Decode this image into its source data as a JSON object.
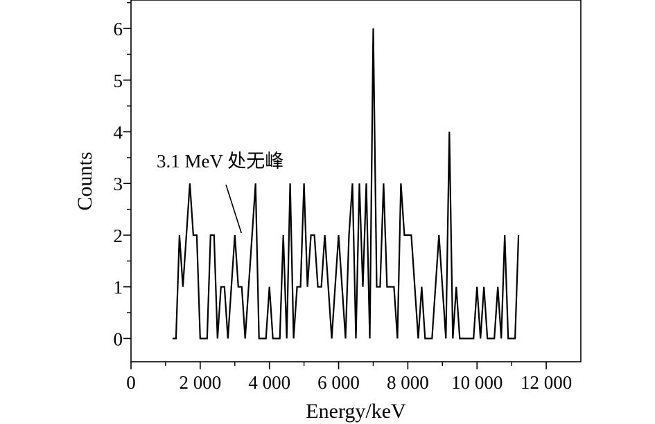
{
  "chart_data": {
    "type": "line",
    "title": "",
    "xlabel": "Energy/keV",
    "ylabel": "Counts",
    "xlim": [
      0,
      13000
    ],
    "ylim": [
      -0.45,
      6.55
    ],
    "grid": false,
    "x_ticks": [
      0,
      2000,
      4000,
      6000,
      8000,
      10000,
      12000
    ],
    "x_tick_labels": [
      "0",
      "2 000",
      "4 000",
      "6 000",
      "8 000",
      "10 000",
      "12 000"
    ],
    "y_ticks": [
      0,
      1,
      2,
      3,
      4,
      5,
      6
    ],
    "y_tick_labels": [
      "0",
      "1",
      "2",
      "3",
      "4",
      "5",
      "6"
    ],
    "series": [
      {
        "color": "#000000",
        "x": [
          1200,
          1300,
          1400,
          1500,
          1600,
          1700,
          1800,
          1900,
          2000,
          2100,
          2200,
          2300,
          2400,
          2500,
          2600,
          2700,
          2800,
          2900,
          3000,
          3100,
          3200,
          3300,
          3400,
          3500,
          3600,
          3700,
          3800,
          3900,
          4000,
          4100,
          4200,
          4300,
          4400,
          4500,
          4600,
          4700,
          4800,
          4900,
          5000,
          5100,
          5200,
          5300,
          5400,
          5500,
          5600,
          5700,
          5800,
          5900,
          6000,
          6100,
          6200,
          6300,
          6400,
          6500,
          6600,
          6700,
          6800,
          6900,
          7000,
          7100,
          7200,
          7300,
          7400,
          7500,
          7600,
          7700,
          7800,
          7900,
          8000,
          8100,
          8200,
          8300,
          8400,
          8500,
          8600,
          8700,
          8800,
          8900,
          9000,
          9100,
          9200,
          9300,
          9400,
          9500,
          9600,
          9700,
          9800,
          9900,
          10000,
          10100,
          10200,
          10300,
          10400,
          10500,
          10600,
          10700,
          10800,
          10900,
          11000,
          11100,
          11200
        ],
        "values": [
          0,
          0,
          2,
          1,
          2,
          3,
          2,
          2,
          0,
          0,
          0,
          2,
          2,
          0,
          1,
          1,
          0,
          1,
          2,
          1,
          1,
          0,
          1,
          2,
          3,
          0,
          0,
          0,
          1,
          0,
          0,
          0,
          2,
          0,
          3,
          0,
          1,
          1,
          3,
          1,
          2,
          2,
          1,
          1,
          2,
          1,
          0,
          1,
          2,
          1,
          0,
          2,
          3,
          0,
          3,
          1,
          3,
          0,
          6,
          1,
          1,
          3,
          1,
          1,
          1,
          0,
          3,
          2,
          2,
          2,
          1,
          0,
          1,
          0,
          0,
          0,
          1,
          2,
          1,
          0,
          4,
          0,
          1,
          0,
          0,
          0,
          0,
          0,
          1,
          0,
          1,
          0,
          0,
          0,
          1,
          0,
          2,
          0,
          0,
          0,
          2
        ]
      }
    ],
    "annotations": [
      {
        "text": "3.1 MeV 处无峰",
        "x": 3200,
        "y": 2
      }
    ]
  }
}
